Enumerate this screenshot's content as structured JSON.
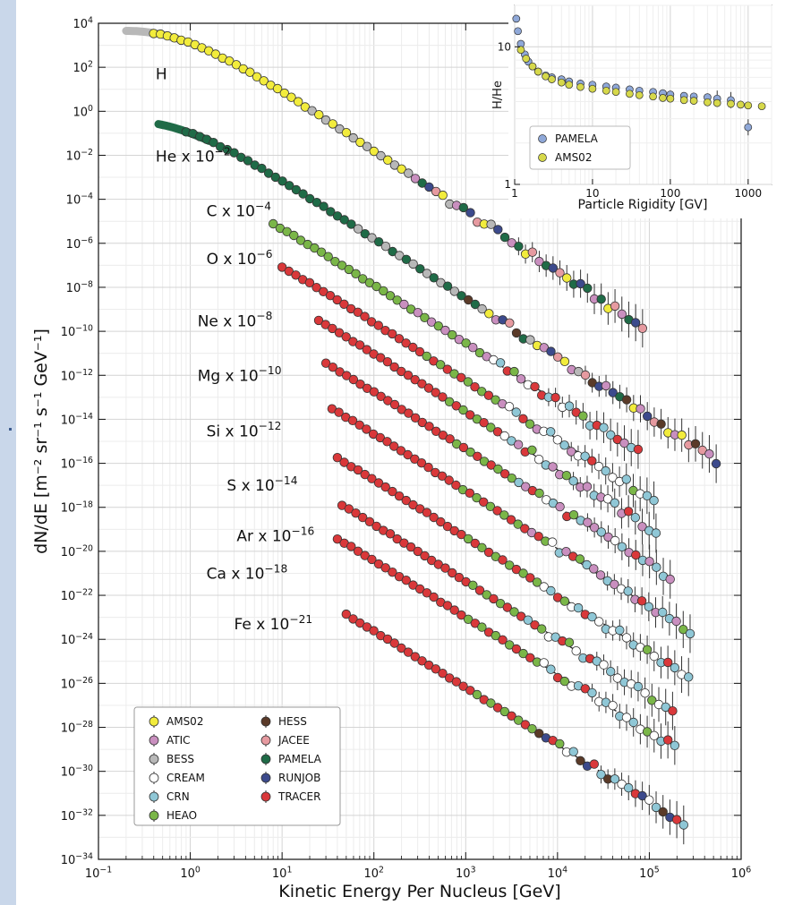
{
  "chart_data": [
    {
      "type": "scatter",
      "xlabel": "Kinetic Energy Per Nucleus [GeV]",
      "ylabel": "dN/dE [m⁻² sr⁻¹ s⁻¹ GeV⁻¹]",
      "xscale": "log",
      "yscale": "log",
      "xlim": [
        0.1,
        1000000
      ],
      "ylim": [
        1e-34,
        10000
      ],
      "grid": true,
      "legend": "lower-left",
      "x_ticks": [
        {
          "v": 0.1,
          "base": "10",
          "exp": "−1"
        },
        {
          "v": 1,
          "base": "10",
          "exp": "0"
        },
        {
          "v": 10,
          "base": "10",
          "exp": "1"
        },
        {
          "v": 100,
          "base": "10",
          "exp": "2"
        },
        {
          "v": 1000,
          "base": "10",
          "exp": "3"
        },
        {
          "v": 10000,
          "base": "10",
          "exp": "4"
        },
        {
          "v": 100000,
          "base": "10",
          "exp": "5"
        },
        {
          "v": 1000000,
          "base": "10",
          "exp": "6"
        }
      ],
      "y_ticks": [
        {
          "v": 10000,
          "base": "10",
          "exp": "4"
        },
        {
          "v": 100,
          "base": "10",
          "exp": "2"
        },
        {
          "v": 1,
          "base": "10",
          "exp": "0"
        },
        {
          "v": 0.01,
          "base": "10",
          "exp": "−2"
        },
        {
          "v": 0.0001,
          "base": "10",
          "exp": "−4"
        },
        {
          "v": 1e-06,
          "base": "10",
          "exp": "−6"
        },
        {
          "v": 1e-08,
          "base": "10",
          "exp": "−8"
        },
        {
          "v": 1e-10,
          "base": "10",
          "exp": "−10"
        },
        {
          "v": 1e-12,
          "base": "10",
          "exp": "−12"
        },
        {
          "v": 1e-14,
          "base": "10",
          "exp": "−14"
        },
        {
          "v": 1e-16,
          "base": "10",
          "exp": "−16"
        },
        {
          "v": 1e-18,
          "base": "10",
          "exp": "−18"
        },
        {
          "v": 1e-20,
          "base": "10",
          "exp": "−20"
        },
        {
          "v": 1e-22,
          "base": "10",
          "exp": "−22"
        },
        {
          "v": 1e-24,
          "base": "10",
          "exp": "−24"
        },
        {
          "v": 1e-26,
          "base": "10",
          "exp": "−26"
        },
        {
          "v": 1e-28,
          "base": "10",
          "exp": "−28"
        },
        {
          "v": 1e-30,
          "base": "10",
          "exp": "−30"
        },
        {
          "v": 1e-32,
          "base": "10",
          "exp": "−32"
        },
        {
          "v": 1e-34,
          "base": "10",
          "exp": "−34"
        }
      ],
      "element_labels": [
        {
          "text": "H",
          "sup": "",
          "x": 0.42,
          "y": 50
        },
        {
          "text": "He x 10",
          "sup": "−2",
          "x": 0.42,
          "y": 0.009
        },
        {
          "text": "C x 10",
          "sup": "−4",
          "x": 1.5,
          "y": 3e-05
        },
        {
          "text": "O x 10",
          "sup": "−6",
          "x": 1.5,
          "y": 2e-07
        },
        {
          "text": "Ne x 10",
          "sup": "−8",
          "x": 1.2,
          "y": 3e-10
        },
        {
          "text": "Mg x 10",
          "sup": "−10",
          "x": 1.2,
          "y": 1e-12
        },
        {
          "text": "Si x 10",
          "sup": "−12",
          "x": 1.5,
          "y": 3e-15
        },
        {
          "text": "S x 10",
          "sup": "−14",
          "x": 2.5,
          "y": 1e-17
        },
        {
          "text": "Ar x 10",
          "sup": "−16",
          "x": 3.2,
          "y": 5e-20
        },
        {
          "text": "Ca x 10",
          "sup": "−18",
          "x": 1.5,
          "y": 1e-21
        },
        {
          "text": "Fe x 10",
          "sup": "−21",
          "x": 3,
          "y": 5e-24
        }
      ],
      "experiments": [
        {
          "name": "AMS02",
          "color": "#f2ec3c"
        },
        {
          "name": "ATIC",
          "color": "#c98fbf"
        },
        {
          "name": "BESS",
          "color": "#b8b8b8"
        },
        {
          "name": "CREAM",
          "color": "#ffffff"
        },
        {
          "name": "CRN",
          "color": "#8fc7d6"
        },
        {
          "name": "HEAO",
          "color": "#7ab648"
        },
        {
          "name": "HESS",
          "color": "#5a3a28"
        },
        {
          "name": "JACEE",
          "color": "#e69aa0"
        },
        {
          "name": "PAMELA",
          "color": "#1f6b47"
        },
        {
          "name": "RUNJOB",
          "color": "#3c4a8c"
        },
        {
          "name": "TRACER",
          "color": "#d9383a"
        }
      ],
      "species": [
        {
          "label": "H",
          "emin": 0.2,
          "emax": 100000.0,
          "logA": 3.7,
          "e0": 0.4,
          "gamma": 2.75,
          "experiments": [
            "AMS02",
            "BESS",
            "ATIC",
            "PAMELA",
            "RUNJOB",
            "JACEE"
          ],
          "fit": false
        },
        {
          "label": "He",
          "emin": 0.45,
          "emax": 600000.0,
          "logA": -0.4,
          "e0": 0.4,
          "gamma": 2.7,
          "experiments": [
            "PAMELA",
            "BESS",
            "AMS02",
            "ATIC",
            "RUNJOB",
            "JACEE",
            "HESS"
          ],
          "fit": false
        },
        {
          "label": "C",
          "emin": 8,
          "emax": 80000.0,
          "logA": -2.6,
          "e0": 0.6,
          "gamma": 2.65,
          "experiments": [
            "HEAO",
            "ATIC",
            "CREAM",
            "CRN",
            "TRACER"
          ],
          "fit": true
        },
        {
          "label": "O",
          "emin": 10,
          "emax": 130000.0,
          "logA": -4.3,
          "e0": 0.8,
          "gamma": 2.65,
          "experiments": [
            "TRACER",
            "HEAO",
            "ATIC",
            "CREAM",
            "CRN"
          ],
          "fit": true
        },
        {
          "label": "Ne",
          "emin": 25,
          "emax": 120000.0,
          "logA": -5.7,
          "e0": 1.5,
          "gamma": 2.65,
          "experiments": [
            "TRACER",
            "HEAO",
            "CREAM",
            "CRN",
            "ATIC"
          ],
          "fit": true
        },
        {
          "label": "Mg",
          "emin": 30,
          "emax": 180000.0,
          "logA": -7.5,
          "e0": 1.5,
          "gamma": 2.62,
          "experiments": [
            "TRACER",
            "HEAO",
            "CREAM",
            "CRN",
            "ATIC"
          ],
          "fit": true
        },
        {
          "label": "Si",
          "emin": 35,
          "emax": 300000.0,
          "logA": -9.4,
          "e0": 1.5,
          "gamma": 2.62,
          "experiments": [
            "TRACER",
            "HEAO",
            "CREAM",
            "CRN",
            "ATIC"
          ],
          "fit": true
        },
        {
          "label": "S",
          "emin": 40,
          "emax": 300000.0,
          "logA": -11.5,
          "e0": 1.5,
          "gamma": 2.62,
          "experiments": [
            "TRACER",
            "HEAO",
            "CREAM",
            "CRN"
          ],
          "fit": true
        },
        {
          "label": "Ar",
          "emin": 45,
          "emax": 200000.0,
          "logA": -13.5,
          "e0": 1.5,
          "gamma": 2.62,
          "experiments": [
            "TRACER",
            "HEAO",
            "CREAM",
            "CRN"
          ],
          "fit": true
        },
        {
          "label": "Ca",
          "emin": 40,
          "emax": 200000.0,
          "logA": -15.2,
          "e0": 1.5,
          "gamma": 2.6,
          "experiments": [
            "TRACER",
            "HEAO",
            "CREAM",
            "CRN"
          ],
          "fit": true
        },
        {
          "label": "Fe",
          "emin": 50,
          "emax": 250000.0,
          "logA": -18.4,
          "e0": 1.5,
          "gamma": 2.6,
          "experiments": [
            "TRACER",
            "HEAO",
            "CREAM",
            "CRN",
            "HESS",
            "RUNJOB"
          ],
          "fit": true
        }
      ]
    },
    {
      "type": "scatter",
      "xlabel": "Particle Rigidity [GV]",
      "ylabel": "H/He",
      "xscale": "log",
      "yscale": "log",
      "xlim": [
        1,
        2000
      ],
      "ylim": [
        1,
        20
      ],
      "legend": "lower-left",
      "x_ticks": [
        {
          "v": 1,
          "label": "1"
        },
        {
          "v": 10,
          "label": "10"
        },
        {
          "v": 100,
          "label": "100"
        },
        {
          "v": 1000,
          "label": "1000"
        }
      ],
      "y_ticks": [
        {
          "v": 1,
          "label": "1"
        },
        {
          "v": 10,
          "label": "10"
        }
      ],
      "series": [
        {
          "name": "PAMELA",
          "color": "#8fa8d8",
          "x": [
            1.05,
            1.1,
            1.2,
            1.35,
            1.5,
            1.7,
            2,
            2.5,
            3,
            4,
            5,
            7,
            10,
            15,
            20,
            30,
            40,
            60,
            80,
            100,
            150,
            200,
            300,
            400,
            600,
            1000
          ],
          "y": [
            16,
            13,
            10.5,
            8.8,
            7.8,
            7.2,
            6.6,
            6.2,
            6.0,
            5.8,
            5.6,
            5.4,
            5.3,
            5.15,
            5.05,
            4.9,
            4.8,
            4.7,
            4.6,
            4.5,
            4.4,
            4.35,
            4.3,
            4.2,
            4.1,
            2.6
          ]
        },
        {
          "name": "AMS02",
          "color": "#d6d84a",
          "x": [
            1.2,
            1.4,
            1.7,
            2,
            2.5,
            3,
            4,
            5,
            7,
            10,
            15,
            20,
            30,
            40,
            60,
            80,
            100,
            150,
            200,
            300,
            400,
            600,
            800,
            1000,
            1500
          ],
          "y": [
            9.5,
            8.2,
            7.2,
            6.6,
            6.1,
            5.8,
            5.5,
            5.3,
            5.1,
            4.95,
            4.8,
            4.7,
            4.55,
            4.45,
            4.35,
            4.25,
            4.2,
            4.1,
            4.05,
            3.95,
            3.9,
            3.85,
            3.8,
            3.75,
            3.7
          ]
        }
      ]
    }
  ]
}
